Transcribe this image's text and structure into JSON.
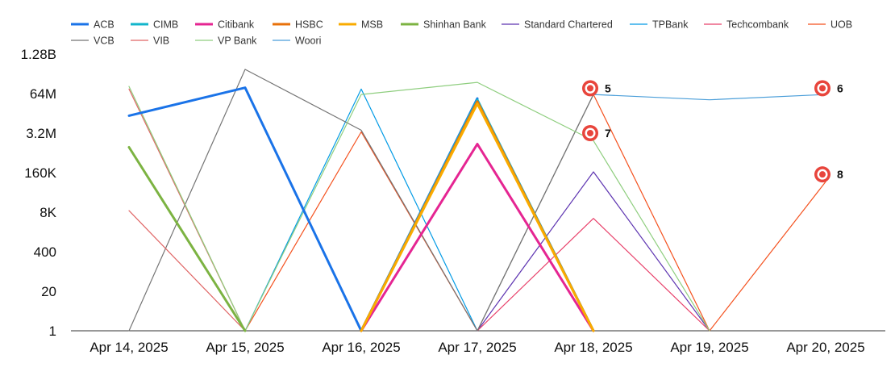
{
  "chart_data": {
    "type": "line",
    "y_scale": "log",
    "categories": [
      "Apr 14, 2025",
      "Apr 15, 2025",
      "Apr 16, 2025",
      "Apr 17, 2025",
      "Apr 18, 2025",
      "Apr 19, 2025",
      "Apr 20, 2025"
    ],
    "y_ticks": [
      {
        "label": "1",
        "value": 1
      },
      {
        "label": "20",
        "value": 20
      },
      {
        "label": "400",
        "value": 400
      },
      {
        "label": "8K",
        "value": 8000
      },
      {
        "label": "160K",
        "value": 160000
      },
      {
        "label": "3.2M",
        "value": 3200000
      },
      {
        "label": "64M",
        "value": 64000000
      },
      {
        "label": "1.28B",
        "value": 1280000000
      }
    ],
    "grid": false,
    "legend_position": "top",
    "series": [
      {
        "name": "ACB",
        "color": "#1a73e8",
        "bold": true,
        "values": [
          12000000,
          100000000,
          1,
          44000000,
          null,
          null,
          null
        ]
      },
      {
        "name": "CIMB",
        "color": "#12b5cb",
        "bold": true,
        "values": [
          null,
          null,
          1,
          40000000,
          1,
          null,
          null
        ]
      },
      {
        "name": "Citibank",
        "color": "#e52592",
        "bold": true,
        "values": [
          null,
          null,
          1,
          1400000,
          1,
          null,
          null
        ]
      },
      {
        "name": "HSBC",
        "color": "#e8710a",
        "bold": true,
        "values": [
          null,
          null,
          1,
          35000000,
          1,
          null,
          null
        ]
      },
      {
        "name": "MSB",
        "color": "#f9ab00",
        "bold": true,
        "values": [
          null,
          null,
          1,
          30000000,
          1,
          null,
          null
        ]
      },
      {
        "name": "Shinhan Bank",
        "color": "#7cb342",
        "bold": true,
        "values": [
          1100000,
          1,
          null,
          null,
          null,
          null,
          null
        ]
      },
      {
        "name": "Standard Chartered",
        "color": "#5e35b1",
        "bold": false,
        "values": [
          null,
          null,
          null,
          1,
          170000,
          1,
          null
        ]
      },
      {
        "name": "TPBank",
        "color": "#039be5",
        "bold": false,
        "values": [
          null,
          1,
          90000000,
          1,
          null,
          null,
          null
        ]
      },
      {
        "name": "Techcombank",
        "color": "#e8406a",
        "bold": false,
        "values": [
          null,
          null,
          null,
          1,
          5000,
          1,
          null
        ]
      },
      {
        "name": "UOB",
        "color": "#f4511e",
        "bold": false,
        "values": [
          null,
          null,
          null,
          null,
          null,
          1,
          80000
        ]
      },
      {
        "name": "VCB",
        "color": "#757575",
        "bold": false,
        "values": [
          1,
          400000000,
          4000000,
          1,
          60000000,
          null,
          null
        ]
      },
      {
        "name": "VIB",
        "color": "#e06666",
        "bold": false,
        "values": [
          9000,
          1,
          null,
          null,
          null,
          null,
          null
        ]
      },
      {
        "name": "VP Bank",
        "color": "#8fce7f",
        "bold": false,
        "values": [
          110000000,
          1,
          60000000,
          150000000,
          1800000,
          1,
          null
        ]
      },
      {
        "name": "Woori",
        "color": "#4a9ed9",
        "bold": false,
        "values": [
          null,
          null,
          null,
          null,
          60000000,
          40000000,
          60000000
        ]
      }
    ],
    "extra_lines": [
      {
        "series": "UOB",
        "points": [
          {
            "x": "Apr 18, 2025",
            "y": 60000000
          },
          {
            "x": "Apr 19, 2025",
            "y": 1
          }
        ]
      },
      {
        "series": "VCB",
        "points": [
          {
            "x": "Apr 17, 2025",
            "y": 1
          },
          {
            "x": "Apr 18, 2025",
            "y": 60000000
          }
        ]
      },
      {
        "series": "VIB",
        "points": [
          {
            "x": "Apr 14, 2025",
            "y": 90000000
          },
          {
            "x": "Apr 15, 2025",
            "y": 1
          }
        ]
      },
      {
        "series": "UOB",
        "points": [
          {
            "x": "Apr 15, 2025",
            "y": 1
          },
          {
            "x": "Apr 16, 2025",
            "y": 3500000
          },
          {
            "x": "Apr 17, 2025",
            "y": 1
          }
        ]
      }
    ],
    "annotations": [
      {
        "label": "5",
        "x": "Apr 18, 2025",
        "y": 96000000
      },
      {
        "label": "6",
        "x": "Apr 20, 2025",
        "y": 96000000
      },
      {
        "label": "7",
        "x": "Apr 18, 2025",
        "y": 3200000
      },
      {
        "label": "8",
        "x": "Apr 20, 2025",
        "y": 140000
      }
    ]
  }
}
